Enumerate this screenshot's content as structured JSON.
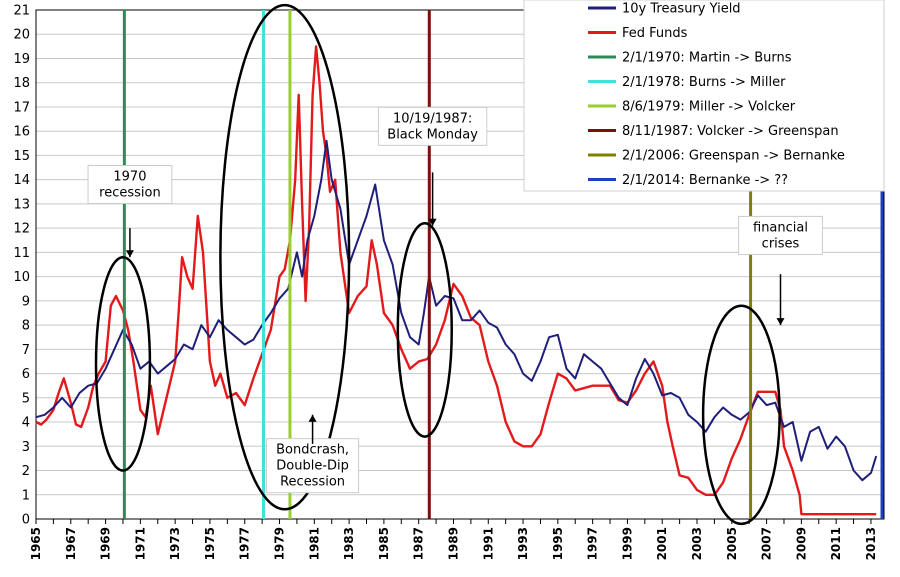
{
  "chart_data": {
    "type": "line",
    "title": "",
    "xlabel": "",
    "ylabel": "",
    "xlim": [
      1965,
      2013.75
    ],
    "ylim": [
      0,
      21
    ],
    "yticks": [
      "0",
      "1",
      "2",
      "3",
      "4",
      "5",
      "6",
      "7",
      "8",
      "9",
      "10",
      "11",
      "12",
      "13",
      "14",
      "15",
      "16",
      "17",
      "18",
      "19",
      "20",
      "21"
    ],
    "xticks": [
      "1965",
      "1967",
      "1969",
      "1971",
      "1973",
      "1975",
      "1977",
      "1979",
      "1981",
      "1983",
      "1985",
      "1987",
      "1989",
      "1991",
      "1993",
      "1995",
      "1997",
      "1999",
      "2001",
      "2003",
      "2005",
      "2007",
      "2009",
      "2011",
      "2013"
    ],
    "series": [
      {
        "name": "10y Treasury Yield",
        "color": "#1f1f7a",
        "x": [
          1965.0,
          1965.5,
          1966.0,
          1966.5,
          1967.0,
          1967.5,
          1968.0,
          1968.5,
          1969.0,
          1969.5,
          1970.0,
          1970.5,
          1971.0,
          1971.5,
          1972.0,
          1972.5,
          1973.0,
          1973.5,
          1974.0,
          1974.5,
          1975.0,
          1975.5,
          1976.0,
          1976.5,
          1977.0,
          1977.5,
          1978.0,
          1978.5,
          1979.0,
          1979.5,
          1980.0,
          1980.3,
          1980.6,
          1981.0,
          1981.4,
          1981.7,
          1982.0,
          1982.5,
          1983.0,
          1983.5,
          1984.0,
          1984.5,
          1985.0,
          1985.5,
          1986.0,
          1986.5,
          1987.0,
          1987.3,
          1987.6,
          1988.0,
          1988.5,
          1989.0,
          1989.5,
          1990.0,
          1990.5,
          1991.0,
          1991.5,
          1992.0,
          1992.5,
          1993.0,
          1993.5,
          1994.0,
          1994.5,
          1995.0,
          1995.5,
          1996.0,
          1996.5,
          1997.0,
          1997.5,
          1998.0,
          1998.5,
          1999.0,
          1999.5,
          2000.0,
          2000.5,
          2001.0,
          2001.5,
          2002.0,
          2002.5,
          2003.0,
          2003.5,
          2004.0,
          2004.5,
          2005.0,
          2005.5,
          2006.0,
          2006.5,
          2007.0,
          2007.5,
          2008.0,
          2008.5,
          2009.0,
          2009.5,
          2010.0,
          2010.5,
          2011.0,
          2011.5,
          2012.0,
          2012.5,
          2013.0,
          2013.3
        ],
        "values": [
          4.2,
          4.3,
          4.6,
          5.0,
          4.6,
          5.2,
          5.5,
          5.6,
          6.2,
          7.0,
          7.8,
          7.2,
          6.2,
          6.5,
          6.0,
          6.3,
          6.6,
          7.2,
          7.0,
          8.0,
          7.5,
          8.2,
          7.8,
          7.5,
          7.2,
          7.4,
          8.0,
          8.5,
          9.1,
          9.5,
          11.0,
          10.0,
          11.5,
          12.5,
          14.0,
          15.6,
          14.0,
          12.8,
          10.5,
          11.5,
          12.5,
          13.8,
          11.5,
          10.5,
          8.5,
          7.5,
          7.2,
          8.5,
          10.0,
          8.8,
          9.2,
          9.1,
          8.2,
          8.2,
          8.6,
          8.1,
          7.9,
          7.2,
          6.8,
          6.0,
          5.7,
          6.5,
          7.5,
          7.6,
          6.2,
          5.8,
          6.8,
          6.5,
          6.2,
          5.6,
          5.0,
          4.7,
          5.8,
          6.6,
          6.0,
          5.1,
          5.2,
          5.0,
          4.3,
          4.0,
          3.6,
          4.2,
          4.6,
          4.3,
          4.1,
          4.4,
          5.1,
          4.7,
          4.8,
          3.8,
          4.0,
          2.4,
          3.6,
          3.8,
          2.9,
          3.4,
          3.0,
          2.0,
          1.6,
          1.9,
          2.6
        ]
      },
      {
        "name": "Fed Funds",
        "color": "#e31a1c",
        "x": [
          1965.0,
          1965.3,
          1965.6,
          1966.0,
          1966.3,
          1966.6,
          1967.0,
          1967.3,
          1967.6,
          1968.0,
          1968.3,
          1968.6,
          1969.0,
          1969.3,
          1969.6,
          1970.0,
          1970.3,
          1970.6,
          1971.0,
          1971.3,
          1971.6,
          1972.0,
          1972.5,
          1973.0,
          1973.2,
          1973.4,
          1973.7,
          1974.0,
          1974.3,
          1974.6,
          1975.0,
          1975.3,
          1975.6,
          1976.0,
          1976.5,
          1977.0,
          1977.5,
          1978.0,
          1978.5,
          1979.0,
          1979.3,
          1979.6,
          1979.9,
          1980.1,
          1980.3,
          1980.5,
          1980.7,
          1980.9,
          1981.1,
          1981.3,
          1981.5,
          1981.7,
          1981.9,
          1982.2,
          1982.5,
          1982.8,
          1983.0,
          1983.5,
          1984.0,
          1984.3,
          1984.6,
          1985.0,
          1985.5,
          1986.0,
          1986.5,
          1987.0,
          1987.5,
          1988.0,
          1988.5,
          1989.0,
          1989.5,
          1990.0,
          1990.5,
          1991.0,
          1991.5,
          1992.0,
          1992.5,
          1993.0,
          1993.5,
          1994.0,
          1994.5,
          1995.0,
          1995.5,
          1996.0,
          1997.0,
          1998.0,
          1998.5,
          1999.0,
          1999.5,
          2000.0,
          2000.5,
          2001.0,
          2001.3,
          2001.6,
          2002.0,
          2002.5,
          2003.0,
          2003.5,
          2004.0,
          2004.5,
          2005.0,
          2005.5,
          2006.0,
          2006.5,
          2007.0,
          2007.5,
          2007.8,
          2008.0,
          2008.5,
          2008.9,
          2009.0,
          2010.0,
          2011.0,
          2012.0,
          2013.0,
          2013.3
        ],
        "values": [
          4.0,
          3.9,
          4.1,
          4.5,
          5.2,
          5.8,
          4.8,
          3.9,
          3.8,
          4.6,
          5.5,
          6.0,
          6.5,
          8.8,
          9.2,
          8.6,
          7.8,
          6.5,
          4.5,
          4.2,
          5.5,
          3.5,
          5.0,
          6.5,
          8.5,
          10.8,
          10.0,
          9.5,
          12.5,
          11.0,
          6.5,
          5.5,
          6.0,
          5.0,
          5.2,
          4.7,
          5.8,
          6.8,
          7.8,
          10.0,
          10.3,
          11.5,
          14.0,
          17.5,
          13.0,
          9.0,
          12.0,
          17.5,
          19.5,
          18.0,
          16.0,
          15.0,
          13.5,
          14.0,
          11.0,
          9.5,
          8.5,
          9.2,
          9.6,
          11.5,
          10.5,
          8.5,
          8.0,
          7.0,
          6.2,
          6.5,
          6.6,
          7.2,
          8.2,
          9.7,
          9.2,
          8.3,
          8.0,
          6.5,
          5.5,
          4.0,
          3.2,
          3.0,
          3.0,
          3.5,
          4.8,
          6.0,
          5.8,
          5.3,
          5.5,
          5.5,
          4.9,
          4.8,
          5.3,
          6.0,
          6.5,
          5.5,
          4.0,
          3.0,
          1.8,
          1.7,
          1.2,
          1.0,
          1.0,
          1.5,
          2.5,
          3.3,
          4.3,
          5.25,
          5.25,
          5.25,
          4.5,
          3.0,
          2.0,
          1.0,
          0.2,
          0.2,
          0.2,
          0.2,
          0.2,
          0.2
        ]
      }
    ],
    "events": [
      {
        "label": "2/1/1970: Martin -> Burns",
        "x": 1970.08,
        "color": "#2e8b57"
      },
      {
        "label": "2/1/1978: Burns -> Miller",
        "x": 1978.08,
        "color": "#40e0e0"
      },
      {
        "label": "8/6/1979: Miller -> Volcker",
        "x": 1979.6,
        "color": "#9acd32"
      },
      {
        "label": "8/11/1987: Volcker -> Greenspan",
        "x": 1987.61,
        "color": "#7b0f0f"
      },
      {
        "label": "2/1/2006: Greenspan -> Bernanke",
        "x": 2006.08,
        "color": "#808000"
      },
      {
        "label": "2/1/2014: Bernanke -> ??",
        "x": 2014.08,
        "color": "#1f3fbf"
      }
    ],
    "annotations": [
      {
        "lines": [
          "1970",
          "recession"
        ],
        "x": 1970.4,
        "y": 13.8
      },
      {
        "lines": [
          "Bondcrash,",
          "Double-Dip",
          "Recession"
        ],
        "x": 1980.9,
        "y": 2.2
      },
      {
        "lines": [
          "10/19/1987:",
          "Black Monday"
        ],
        "x": 1987.8,
        "y": 16.2
      },
      {
        "lines": [
          "financial",
          "crises"
        ],
        "x": 2007.8,
        "y": 11.7
      }
    ],
    "legend_position": "top-right",
    "grid": true
  }
}
